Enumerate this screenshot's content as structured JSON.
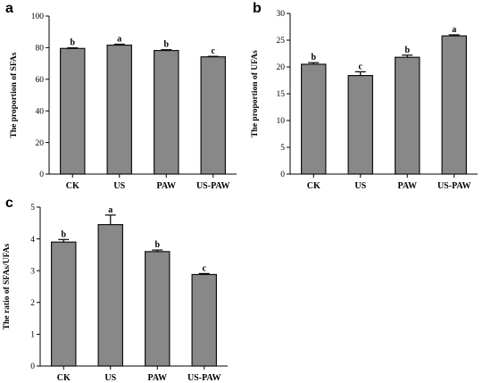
{
  "chart_data": [
    {
      "type": "bar",
      "panel_label": "a",
      "categories": [
        "CK",
        "US",
        "PAW",
        "US-PAW"
      ],
      "values": [
        79.5,
        81.6,
        78.2,
        74.2
      ],
      "errors": [
        0.4,
        0.6,
        0.5,
        0.3
      ],
      "significance": [
        "b",
        "a",
        "b",
        "c"
      ],
      "ylabel": "The proportion of SFAs",
      "ylim": [
        0,
        100
      ],
      "yticks": [
        0,
        20,
        40,
        60,
        80,
        100
      ]
    },
    {
      "type": "bar",
      "panel_label": "b",
      "categories": [
        "CK",
        "US",
        "PAW",
        "US-PAW"
      ],
      "values": [
        20.5,
        18.4,
        21.8,
        25.8
      ],
      "errors": [
        0.3,
        0.7,
        0.4,
        0.2
      ],
      "significance": [
        "b",
        "c",
        "b",
        "a"
      ],
      "ylabel": "The proportion of UFAs",
      "ylim": [
        0,
        30
      ],
      "yticks": [
        0,
        5,
        10,
        15,
        20,
        25,
        30
      ]
    },
    {
      "type": "bar",
      "panel_label": "c",
      "categories": [
        "CK",
        "US",
        "PAW",
        "US-PAW"
      ],
      "values": [
        3.9,
        4.45,
        3.6,
        2.88
      ],
      "errors": [
        0.08,
        0.3,
        0.05,
        0.03
      ],
      "significance": [
        "b",
        "a",
        "b",
        "c"
      ],
      "ylabel": "The ratio of SFAs/UFAs",
      "ylim": [
        0,
        5
      ],
      "yticks": [
        0,
        1,
        2,
        3,
        4,
        5
      ]
    }
  ]
}
